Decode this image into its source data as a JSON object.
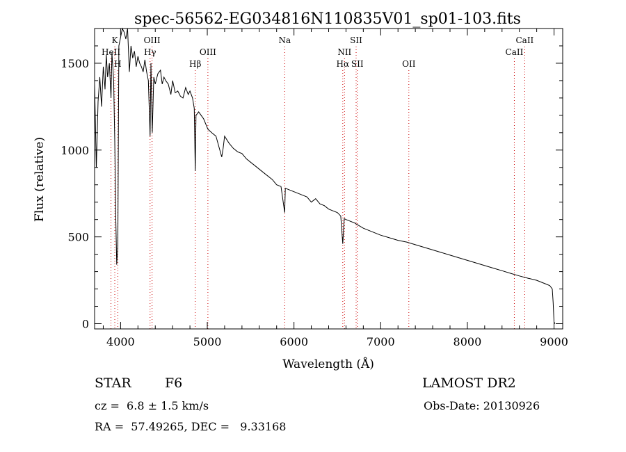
{
  "chart_data": {
    "type": "line",
    "title": "spec-56562-EG034816N110835V01_sp01-103.fits",
    "xlabel": "Wavelength (Å)",
    "ylabel": "Flux (relative)",
    "xlim": [
      3700,
      9100
    ],
    "ylim": [
      -30,
      1700
    ],
    "xticks": [
      4000,
      5000,
      6000,
      7000,
      8000,
      9000
    ],
    "yticks": [
      0,
      500,
      1000,
      1500
    ],
    "grid": false,
    "series": [
      {
        "color": "#000000",
        "x": [
          3700,
          3720,
          3740,
          3760,
          3780,
          3800,
          3820,
          3835,
          3850,
          3870,
          3889,
          3900,
          3920,
          3933,
          3945,
          3955,
          3968,
          3980,
          4000,
          4020,
          4040,
          4060,
          4080,
          4101,
          4120,
          4140,
          4160,
          4180,
          4200,
          4220,
          4240,
          4260,
          4280,
          4300,
          4320,
          4340,
          4350,
          4365,
          4383,
          4400,
          4430,
          4460,
          4480,
          4500,
          4520,
          4550,
          4580,
          4600,
          4630,
          4660,
          4690,
          4720,
          4750,
          4780,
          4800,
          4830,
          4850,
          4861,
          4870,
          4900,
          4957,
          5007,
          5050,
          5100,
          5167,
          5183,
          5200,
          5250,
          5300,
          5350,
          5400,
          5450,
          5500,
          5550,
          5600,
          5650,
          5700,
          5750,
          5800,
          5850,
          5893,
          5900,
          5950,
          6000,
          6050,
          6100,
          6150,
          6200,
          6250,
          6300,
          6350,
          6400,
          6450,
          6500,
          6540,
          6563,
          6580,
          6600,
          6650,
          6700,
          6750,
          6800,
          6850,
          6900,
          6950,
          7000,
          7100,
          7200,
          7300,
          7400,
          7500,
          7600,
          7700,
          7800,
          7900,
          8000,
          8100,
          8200,
          8300,
          8400,
          8500,
          8600,
          8700,
          8800,
          8900,
          8950,
          8980,
          8990,
          9000,
          9010
        ],
        "y": [
          1380,
          900,
          1280,
          1420,
          1250,
          1480,
          1350,
          1550,
          1420,
          1500,
          1300,
          1560,
          1400,
          1050,
          600,
          340,
          450,
          1600,
          1650,
          1720,
          1680,
          1640,
          1710,
          1450,
          1600,
          1530,
          1570,
          1480,
          1540,
          1500,
          1480,
          1450,
          1520,
          1450,
          1400,
          1080,
          1500,
          1100,
          1420,
          1380,
          1440,
          1460,
          1380,
          1420,
          1400,
          1380,
          1320,
          1400,
          1330,
          1340,
          1310,
          1300,
          1360,
          1320,
          1340,
          1300,
          1240,
          880,
          1200,
          1220,
          1180,
          1120,
          1100,
          1080,
          960,
          1010,
          1080,
          1040,
          1010,
          990,
          980,
          950,
          930,
          910,
          890,
          870,
          850,
          830,
          800,
          790,
          640,
          780,
          770,
          760,
          750,
          740,
          730,
          700,
          720,
          690,
          680,
          660,
          650,
          640,
          620,
          460,
          605,
          600,
          590,
          580,
          565,
          550,
          540,
          530,
          520,
          510,
          495,
          480,
          470,
          455,
          440,
          425,
          410,
          395,
          380,
          365,
          350,
          335,
          320,
          305,
          290,
          275,
          262,
          250,
          230,
          220,
          200,
          120,
          10,
          0
        ]
      }
    ],
    "line_markers": [
      {
        "name": "K",
        "x": 3933,
        "row": 0
      },
      {
        "name": "HeII",
        "x": 3889,
        "row": 1
      },
      {
        "name": "H",
        "x": 3968,
        "row": 2
      },
      {
        "name": "OIII",
        "x": 4363,
        "row": 0
      },
      {
        "name": "Hγ",
        "x": 4340,
        "row": 1
      },
      {
        "name": "Hβ",
        "x": 4861,
        "row": 2
      },
      {
        "name": "OIII",
        "x": 5007,
        "row": 1
      },
      {
        "name": "Na",
        "x": 5893,
        "row": 0
      },
      {
        "name": "SII",
        "x": 6717,
        "row": 0
      },
      {
        "name": "NII",
        "x": 6583,
        "row": 1
      },
      {
        "name": "Hα",
        "x": 6563,
        "row": 2
      },
      {
        "name": "SII",
        "x": 6731,
        "row": 2
      },
      {
        "name": "OII",
        "x": 7325,
        "row": 2
      },
      {
        "name": "CaII",
        "x": 8662,
        "row": 0
      },
      {
        "name": "CaII",
        "x": 8542,
        "row": 1
      }
    ],
    "marker_color": "#cc0000"
  },
  "info": {
    "object_type": "STAR",
    "subclass": "F6",
    "survey": "LAMOST DR2",
    "redshift": "cz =  6.8 ± 1.5 km/s",
    "obs_date": "Obs-Date: 20130926",
    "coords": "RA =  57.49265, DEC =   9.33168"
  }
}
